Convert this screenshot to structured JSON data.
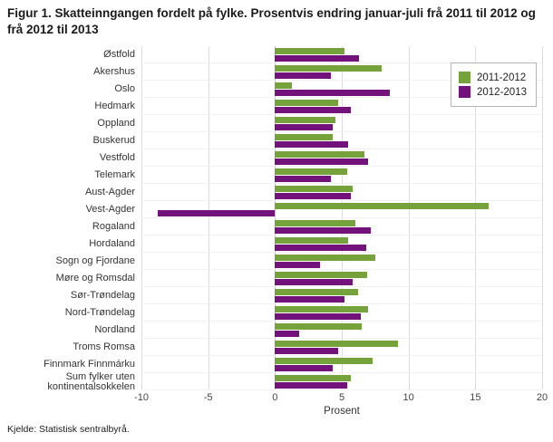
{
  "title": "Figur 1. Skatteinngangen fordelt på fylke. Prosentvis endring januar-juli frå 2011 til 2012 og frå 2012 til 2013",
  "source": "Kjelde: Statistisk sentralbyrå.",
  "colors": {
    "series1": "#76a23c",
    "series2": "#73127b",
    "gridline": "#dcdcdc",
    "axis_line": "#8a8a8a"
  },
  "chart_data": {
    "type": "bar",
    "orientation": "horizontal",
    "title": "Figur 1. Skatteinngangen fordelt på fylke. Prosentvis endring januar-juli frå 2011 til 2012 og frå 2012 til 2013",
    "xlabel": "Prosent",
    "ylabel": "",
    "xlim": [
      -10,
      20
    ],
    "xticks": [
      -10,
      -5,
      0,
      5,
      10,
      15,
      20
    ],
    "grid": true,
    "legend_position": "top-right",
    "categories": [
      "Østfold",
      "Akershus",
      "Oslo",
      "Hedmark",
      "Oppland",
      "Buskerud",
      "Vestfold",
      "Telemark",
      "Aust-Agder",
      "Vest-Agder",
      "Rogaland",
      "Hordaland",
      "Sogn og Fjordane",
      "Møre og Romsdal",
      "Sør-Trøndelag",
      "Nord-Trøndelag",
      "Nordland",
      "Troms Romsa",
      "Finnmark Finnmárku",
      "Sum fylker uten kontinentalsokkelen"
    ],
    "series": [
      {
        "name": "2011-2012",
        "color": "#76a23c",
        "values": [
          5.2,
          8.0,
          1.3,
          4.7,
          4.5,
          4.3,
          6.7,
          5.4,
          5.8,
          16.0,
          6.0,
          5.5,
          7.5,
          6.9,
          6.2,
          7.0,
          6.5,
          9.2,
          7.3,
          5.7
        ]
      },
      {
        "name": "2012-2013",
        "color": "#73127b",
        "values": [
          6.3,
          4.2,
          8.6,
          5.7,
          4.3,
          5.5,
          7.0,
          4.2,
          5.7,
          -8.8,
          7.2,
          6.8,
          3.4,
          5.8,
          5.2,
          6.4,
          1.8,
          4.7,
          4.3,
          5.4
        ]
      }
    ]
  }
}
